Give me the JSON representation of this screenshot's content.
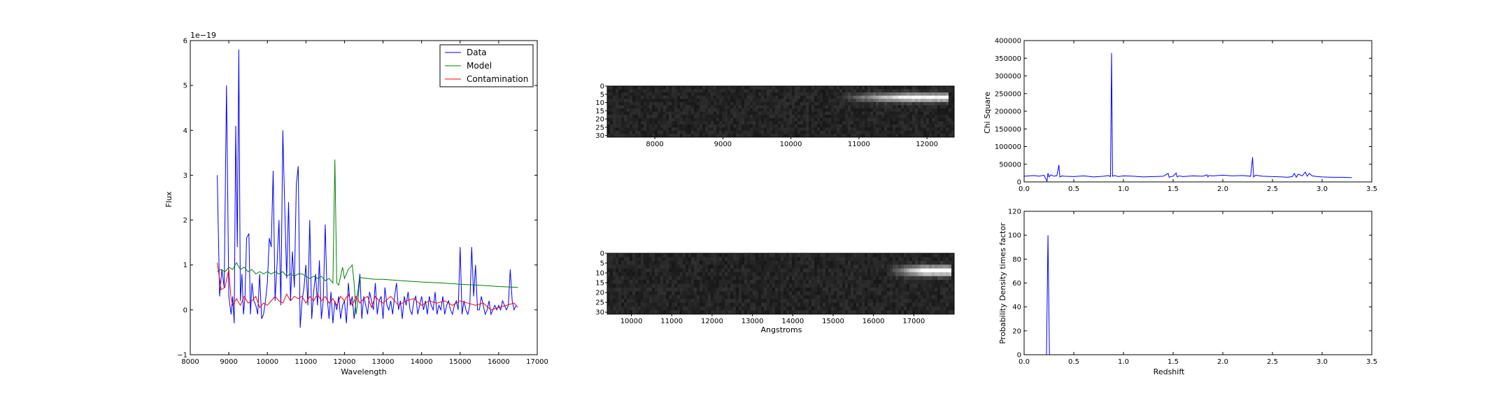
{
  "chart_data": [
    {
      "type": "line",
      "id": "spectrum",
      "title": "",
      "xlabel": "Wavelength",
      "ylabel": "Flux",
      "offset_text": "1e−19",
      "xlim": [
        8000,
        17000
      ],
      "ylim": [
        -1,
        6
      ],
      "xticks": [
        "8000",
        "9000",
        "10000",
        "11000",
        "12000",
        "13000",
        "14000",
        "15000",
        "16000",
        "17000"
      ],
      "yticks": [
        "−1",
        "0",
        "1",
        "2",
        "3",
        "4",
        "5",
        "6"
      ],
      "grid": false,
      "legend": "top-right",
      "series": [
        {
          "name": "Data",
          "color": "#0000ff",
          "x": [
            8700,
            8760,
            8820,
            8880,
            8940,
            9000,
            9060,
            9100,
            9140,
            9180,
            9220,
            9260,
            9300,
            9340,
            9380,
            9420,
            9460,
            9520,
            9560,
            9600,
            9650,
            9700,
            9750,
            9800,
            9850,
            9900,
            9950,
            10000,
            10050,
            10100,
            10150,
            10200,
            10250,
            10300,
            10350,
            10400,
            10450,
            10500,
            10550,
            10600,
            10650,
            10700,
            10750,
            10800,
            10850,
            10900,
            10950,
            11000,
            11050,
            11100,
            11150,
            11200,
            11250,
            11300,
            11350,
            11400,
            11450,
            11500,
            11550,
            11600,
            11650,
            11700,
            11750,
            11800,
            11850,
            11900,
            11950,
            12000,
            12050,
            12100,
            12150,
            12200,
            12250,
            12300,
            12350,
            12400,
            12450,
            12500,
            12550,
            12600,
            12650,
            12700,
            12750,
            12800,
            12850,
            12900,
            12950,
            13000,
            13050,
            13100,
            13150,
            13200,
            13250,
            13300,
            13350,
            13400,
            13450,
            13500,
            13550,
            13600,
            13650,
            13700,
            13750,
            13800,
            13850,
            13900,
            13950,
            14000,
            14050,
            14100,
            14150,
            14200,
            14250,
            14300,
            14350,
            14400,
            14450,
            14500,
            14550,
            14600,
            14650,
            14700,
            14750,
            14800,
            14850,
            14900,
            14950,
            15000,
            15050,
            15100,
            15150,
            15200,
            15250,
            15300,
            15350,
            15400,
            15450,
            15500,
            15550,
            15600,
            15650,
            15700,
            15750,
            15800,
            15850,
            15900,
            15950,
            16000,
            16050,
            16100,
            16150,
            16200,
            16250,
            16300,
            16350,
            16400,
            16450
          ],
          "y": [
            3.0,
            0.3,
            0.9,
            0.5,
            5.0,
            0.3,
            -0.1,
            0.3,
            -0.3,
            4.1,
            1.4,
            5.8,
            0.2,
            0.8,
            -0.1,
            0.3,
            1.6,
            1.7,
            -0.1,
            0.6,
            0.2,
            0.1,
            -0.1,
            0.8,
            -0.2,
            -0.1,
            0.2,
            0.6,
            1.6,
            1.4,
            3.1,
            0.2,
            1.0,
            2.0,
            0.1,
            4.0,
            2.3,
            0.7,
            2.4,
            0.2,
            1.3,
            0.5,
            2.8,
            3.2,
            -0.4,
            0.2,
            0.5,
            1.0,
            0.1,
            2.0,
            -0.2,
            0.4,
            0.8,
            0.1,
            1.1,
            -0.2,
            0.2,
            1.9,
            0.3,
            -0.2,
            0.4,
            -0.3,
            0.2,
            0.0,
            0.3,
            -0.2,
            0.1,
            0.2,
            -0.3,
            0.6,
            0.1,
            0.3,
            -0.2,
            0.2,
            0.4,
            0.8,
            -0.2,
            0.3,
            0.1,
            -0.1,
            0.4,
            0.2,
            0.0,
            0.6,
            -0.1,
            0.2,
            0.3,
            -0.2,
            0.5,
            0.1,
            0.0,
            0.2,
            -0.1,
            0.3,
            0.6,
            0.0,
            0.2,
            -0.2,
            0.3,
            0.1,
            0.4,
            0.0,
            -0.1,
            0.2,
            0.3,
            -0.1,
            0.1,
            0.3,
            0.0,
            0.2,
            -0.1,
            0.3,
            0.1,
            0.0,
            0.4,
            -0.1,
            0.1,
            0.0,
            0.3,
            -0.1,
            0.1,
            0.2,
            0.0,
            -0.1,
            0.1,
            0.2,
            0.0,
            1.4,
            -0.1,
            0.2,
            0.0,
            -0.1,
            0.1,
            1.4,
            0.3,
            1.0,
            0.0,
            0.0,
            0.3,
            0.1,
            -0.1,
            0.0,
            0.2,
            -0.1,
            0.0,
            0.1,
            0.0,
            0.1,
            0.0,
            0.2,
            0.1,
            0.0,
            0.1,
            0.9,
            0.2,
            0.0,
            0.1
          ]
        },
        {
          "name": "Model",
          "color": "#008000",
          "x": [
            8700,
            8800,
            8900,
            9000,
            9100,
            9200,
            9300,
            9400,
            9500,
            9600,
            9700,
            9800,
            9900,
            10000,
            10100,
            10200,
            10300,
            10400,
            10500,
            10600,
            10700,
            10800,
            10900,
            11000,
            11100,
            11200,
            11300,
            11400,
            11500,
            11600,
            11700,
            11750,
            11800,
            11850,
            11900,
            11950,
            12000,
            12100,
            12200,
            12250,
            12300,
            12350,
            12400,
            12600,
            12800,
            13000,
            13500,
            14000,
            14500,
            15000,
            15500,
            16000,
            16500
          ],
          "y": [
            0.85,
            0.9,
            0.85,
            0.95,
            0.9,
            1.05,
            0.9,
            0.95,
            0.85,
            0.9,
            0.8,
            0.85,
            0.8,
            0.85,
            0.8,
            0.85,
            0.8,
            0.85,
            0.75,
            0.8,
            0.75,
            0.8,
            0.8,
            0.75,
            0.7,
            0.75,
            0.7,
            0.75,
            0.65,
            0.7,
            0.6,
            3.35,
            0.6,
            0.55,
            0.75,
            0.95,
            0.7,
            0.9,
            1.0,
            0.6,
            -0.1,
            0.2,
            0.72,
            0.7,
            0.68,
            0.68,
            0.65,
            0.62,
            0.6,
            0.57,
            0.55,
            0.52,
            0.5
          ]
        },
        {
          "name": "Contamination",
          "color": "#ff0000",
          "x": [
            8700,
            8800,
            8900,
            9000,
            9050,
            9100,
            9200,
            9300,
            9400,
            9500,
            9600,
            9700,
            9800,
            9900,
            10000,
            10100,
            10200,
            10300,
            10400,
            10500,
            10600,
            10700,
            10800,
            10900,
            11000,
            11100,
            11200,
            11300,
            11400,
            11500,
            11600,
            11700,
            11800,
            11900,
            12000,
            12100,
            12200,
            12300,
            12400,
            12500,
            12600,
            12700,
            12800,
            12900,
            13000,
            13200,
            13400,
            13600,
            13800,
            14000,
            14200,
            14400,
            14600,
            14800,
            15000,
            15200,
            15400,
            15600,
            15800,
            16000,
            16200,
            16400,
            16500
          ],
          "y": [
            1.05,
            0.45,
            0.5,
            0.9,
            0.3,
            0.1,
            0.25,
            0.1,
            0.3,
            0.15,
            0.2,
            0.3,
            0.05,
            0.15,
            0.1,
            0.2,
            0.3,
            0.2,
            0.15,
            0.35,
            0.2,
            0.3,
            0.25,
            0.3,
            0.15,
            0.3,
            0.2,
            0.35,
            0.2,
            0.3,
            0.15,
            0.25,
            0.1,
            0.3,
            0.2,
            0.35,
            0.1,
            0.3,
            0.15,
            0.25,
            0.3,
            0.05,
            0.3,
            0.2,
            0.15,
            0.3,
            0.1,
            0.2,
            0.25,
            0.1,
            0.2,
            0.15,
            0.2,
            0.1,
            0.2,
            0.15,
            0.1,
            0.15,
            0.0,
            0.05,
            0.1,
            0.15,
            0.05
          ]
        }
      ]
    },
    {
      "type": "heatmap",
      "id": "image-top",
      "title": "",
      "xlabel": "",
      "ylabel": "",
      "xlim": [
        7300,
        12400
      ],
      "ylim": [
        31,
        0
      ],
      "xticks": [
        "8000",
        "9000",
        "10000",
        "11000",
        "12000"
      ],
      "yticks": [
        "0",
        "5",
        "10",
        "15",
        "20",
        "25",
        "30"
      ],
      "colormap": "gray",
      "trace": {
        "start": 10700,
        "end": 12300,
        "row": 7,
        "peak": 0.85
      }
    },
    {
      "type": "heatmap",
      "id": "image-bottom",
      "title": "",
      "xlabel": "Angstroms",
      "ylabel": "",
      "xlim": [
        9400,
        18000
      ],
      "ylim": [
        31,
        0
      ],
      "xticks": [
        "10000",
        "11000",
        "12000",
        "13000",
        "14000",
        "15000",
        "16000",
        "17000"
      ],
      "yticks": [
        "0",
        "5",
        "10",
        "15",
        "20",
        "25",
        "30"
      ],
      "colormap": "gray",
      "trace": {
        "start": 16300,
        "end": 17900,
        "row": 9,
        "peak": 0.9
      }
    },
    {
      "type": "line",
      "id": "chi-square",
      "title": "",
      "xlabel": "",
      "ylabel": "Chi Square",
      "xlim": [
        0,
        3.5
      ],
      "ylim": [
        0,
        400000
      ],
      "xticks": [
        "0.0",
        "0.5",
        "1.0",
        "1.5",
        "2.0",
        "2.5",
        "3.0",
        "3.5"
      ],
      "yticks": [
        "0",
        "50000",
        "100000",
        "150000",
        "200000",
        "250000",
        "300000",
        "350000",
        "400000"
      ],
      "grid": false,
      "series": [
        {
          "color": "#0000ff",
          "x": [
            0.0,
            0.05,
            0.1,
            0.15,
            0.2,
            0.23,
            0.24,
            0.25,
            0.27,
            0.3,
            0.33,
            0.35,
            0.36,
            0.38,
            0.4,
            0.5,
            0.6,
            0.7,
            0.8,
            0.85,
            0.87,
            0.88,
            0.89,
            0.91,
            0.95,
            1.0,
            1.1,
            1.2,
            1.3,
            1.4,
            1.45,
            1.46,
            1.48,
            1.5,
            1.53,
            1.54,
            1.56,
            1.6,
            1.7,
            1.8,
            1.84,
            1.85,
            1.86,
            1.9,
            2.0,
            2.1,
            2.2,
            2.28,
            2.3,
            2.31,
            2.33,
            2.4,
            2.5,
            2.6,
            2.65,
            2.7,
            2.72,
            2.74,
            2.76,
            2.8,
            2.83,
            2.85,
            2.87,
            2.9,
            2.95,
            3.0,
            3.1,
            3.2,
            3.3
          ],
          "y": [
            16000,
            17000,
            18000,
            16000,
            19000,
            2000,
            25000,
            14000,
            20000,
            16000,
            18000,
            48000,
            14000,
            17000,
            16000,
            15000,
            17000,
            14000,
            16000,
            18000,
            15000,
            365000,
            16000,
            18000,
            15000,
            17000,
            16000,
            14000,
            15000,
            16000,
            24000,
            13000,
            15000,
            16000,
            25000,
            14000,
            17000,
            15000,
            17000,
            16000,
            20000,
            14000,
            18000,
            17000,
            19000,
            17000,
            18000,
            16000,
            70000,
            14000,
            19000,
            16000,
            15000,
            14000,
            13000,
            15000,
            24000,
            13000,
            22000,
            17000,
            28000,
            16000,
            24000,
            17000,
            15000,
            14000,
            13000,
            13000,
            12000
          ]
        }
      ]
    },
    {
      "type": "line",
      "id": "probability-density",
      "title": "",
      "xlabel": "Redshift",
      "ylabel": "Probability Density times factor",
      "xlim": [
        0,
        3.5
      ],
      "ylim": [
        0,
        120
      ],
      "xticks": [
        "0.0",
        "0.5",
        "1.0",
        "1.5",
        "2.0",
        "2.5",
        "3.0",
        "3.5"
      ],
      "yticks": [
        "0",
        "20",
        "40",
        "60",
        "80",
        "100",
        "120"
      ],
      "grid": false,
      "series": [
        {
          "color": "#0000ff",
          "x": [
            0.0,
            0.21,
            0.225,
            0.24,
            0.255,
            0.27,
            3.3
          ],
          "y": [
            0,
            0,
            0,
            100,
            0,
            0,
            0
          ]
        }
      ]
    }
  ]
}
